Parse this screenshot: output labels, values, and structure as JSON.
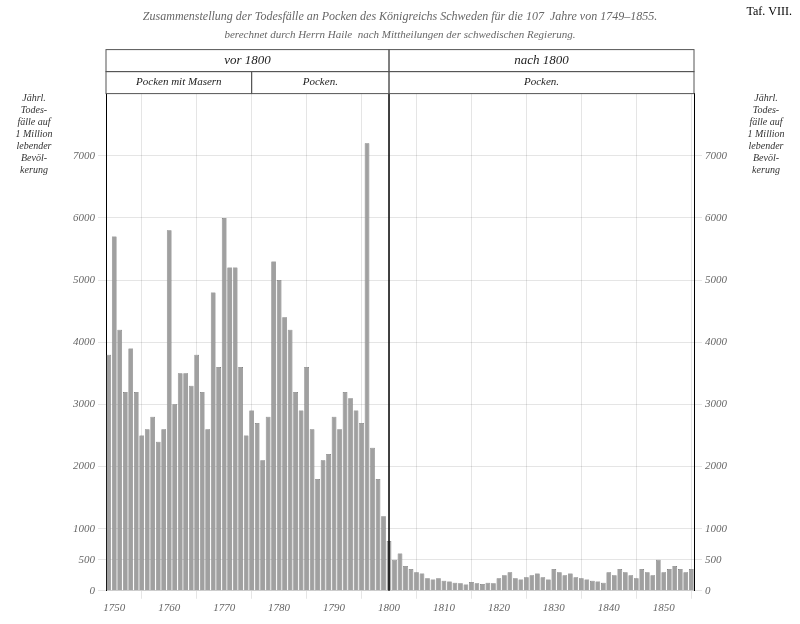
{
  "chart_data": {
    "type": "bar",
    "title": "Zusammenstellung der Todesfälle an Pocken des Königreichs Schweden für die 107  Jahre von 1749–1855.",
    "subtitle": "berechnet durch Herrn Haile  nach Mittheilungen der schwedischen Regierung.",
    "annotations": [
      {
        "text": "Taf. VIII."
      }
    ],
    "sections": [
      [
        {
          "text": "vor 1800",
          "from": 1748.5,
          "to": 1800
        },
        {
          "text": "nach 1800",
          "from": 1800,
          "to": 1855.5
        }
      ],
      [
        {
          "text": "Pocken mit Masern",
          "from": 1748.5,
          "to": 1775
        },
        {
          "text": "Pocken.",
          "from": 1775,
          "to": 1800
        },
        {
          "text": "Pocken.",
          "from": 1800,
          "to": 1855.5
        }
      ]
    ],
    "divider": 1800,
    "y_label": "Jährl.\nTodes-\nfälle auf\n1 Million\nlebender\nBevöl-\nkerung",
    "y2_label": "Jährl.\nTodes-\nfälle auf\n1 Million\nlebender\nBevöl-\nkerung",
    "x": [
      1749,
      1750,
      1751,
      1752,
      1753,
      1754,
      1755,
      1756,
      1757,
      1758,
      1759,
      1760,
      1761,
      1762,
      1763,
      1764,
      1765,
      1766,
      1767,
      1768,
      1769,
      1770,
      1771,
      1772,
      1773,
      1774,
      1775,
      1776,
      1777,
      1778,
      1779,
      1780,
      1781,
      1782,
      1783,
      1784,
      1785,
      1786,
      1787,
      1788,
      1789,
      1790,
      1791,
      1792,
      1793,
      1794,
      1795,
      1796,
      1797,
      1798,
      1799,
      1800,
      1801,
      1802,
      1803,
      1804,
      1805,
      1806,
      1807,
      1808,
      1809,
      1810,
      1811,
      1812,
      1813,
      1814,
      1815,
      1816,
      1817,
      1818,
      1819,
      1820,
      1821,
      1822,
      1823,
      1824,
      1825,
      1826,
      1827,
      1828,
      1829,
      1830,
      1831,
      1832,
      1833,
      1834,
      1835,
      1836,
      1837,
      1838,
      1839,
      1840,
      1841,
      1842,
      1843,
      1844,
      1845,
      1846,
      1847,
      1848,
      1849,
      1850,
      1851,
      1852,
      1853,
      1854,
      1855
    ],
    "values": [
      3800,
      5700,
      4200,
      3200,
      3900,
      3200,
      2500,
      2600,
      2800,
      2400,
      2600,
      5800,
      3000,
      3500,
      3500,
      3300,
      3800,
      3200,
      2600,
      4800,
      3600,
      6000,
      5200,
      5200,
      3600,
      2500,
      2900,
      2700,
      2100,
      2800,
      5300,
      5000,
      4400,
      4200,
      3200,
      2900,
      3600,
      2600,
      1800,
      2100,
      2200,
      2800,
      2600,
      3200,
      3100,
      2900,
      2700,
      7200,
      2300,
      1800,
      1200,
      800,
      500,
      600,
      400,
      350,
      300,
      280,
      200,
      180,
      200,
      160,
      150,
      130,
      120,
      100,
      140,
      120,
      110,
      130,
      120,
      200,
      250,
      300,
      200,
      180,
      220,
      250,
      280,
      220,
      180,
      350,
      300,
      250,
      280,
      220,
      200,
      180,
      160,
      150,
      130,
      300,
      250,
      350,
      300,
      250,
      200,
      350,
      300,
      250,
      500,
      300,
      350,
      400,
      350,
      300,
      350
    ],
    "color": "#a0a0a0",
    "xlim": [
      1748.5,
      1855.5
    ],
    "xticks": [
      1750,
      1760,
      1770,
      1780,
      1790,
      1800,
      1810,
      1820,
      1830,
      1840,
      1850
    ],
    "ylim": [
      0,
      8000
    ],
    "yticks": [
      0,
      500,
      1000,
      2000,
      3000,
      4000,
      5000,
      6000,
      7000
    ],
    "y2lim": [
      0,
      8000
    ],
    "y2ticks": [
      0,
      500,
      1000,
      2000,
      3000,
      4000,
      5000,
      6000,
      7000
    ],
    "grid": true
  }
}
